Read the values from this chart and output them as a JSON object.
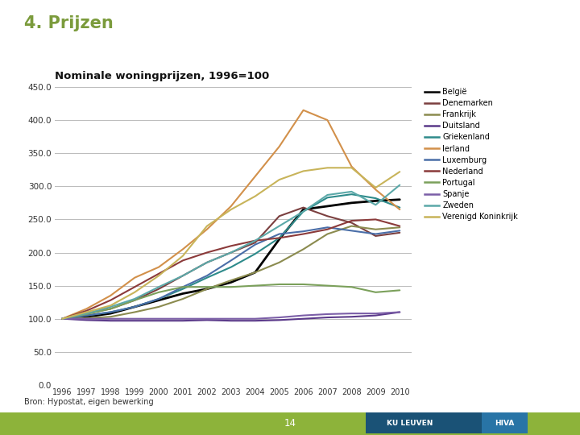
{
  "title": "4. Prijzen",
  "subtitle": "Nominale woningprijzen, 1996=100",
  "source": "Bron: Hypostat, eigen bewerking",
  "years": [
    1996,
    1997,
    1998,
    1999,
    2000,
    2001,
    2002,
    2003,
    2004,
    2005,
    2006,
    2007,
    2008,
    2009,
    2010
  ],
  "ylim": [
    0,
    450
  ],
  "yticks": [
    0.0,
    50.0,
    100.0,
    150.0,
    200.0,
    250.0,
    300.0,
    350.0,
    400.0,
    450.0
  ],
  "series": [
    {
      "name": "België",
      "color": "#000000",
      "linewidth": 2.0,
      "values": [
        100,
        103,
        108,
        118,
        128,
        138,
        145,
        155,
        170,
        220,
        265,
        270,
        275,
        278,
        280
      ]
    },
    {
      "name": "Denemarken",
      "color": "#7B3F3F",
      "linewidth": 1.5,
      "values": [
        100,
        108,
        115,
        128,
        145,
        165,
        185,
        200,
        215,
        255,
        268,
        255,
        245,
        225,
        230
      ]
    },
    {
      "name": "Frankrijk",
      "color": "#8B8B4F",
      "linewidth": 1.5,
      "values": [
        100,
        101,
        103,
        110,
        118,
        130,
        145,
        158,
        170,
        185,
        205,
        228,
        240,
        235,
        238
      ]
    },
    {
      "name": "Duitsland",
      "color": "#5B3A8A",
      "linewidth": 1.5,
      "values": [
        100,
        98,
        97,
        97,
        97,
        97,
        98,
        97,
        97,
        98,
        100,
        102,
        103,
        105,
        110
      ]
    },
    {
      "name": "Griekenland",
      "color": "#2E8B8B",
      "linewidth": 1.5,
      "values": [
        100,
        105,
        110,
        118,
        130,
        145,
        162,
        178,
        198,
        222,
        262,
        283,
        288,
        282,
        268
      ]
    },
    {
      "name": "Ierland",
      "color": "#D2904A",
      "linewidth": 1.5,
      "values": [
        100,
        115,
        135,
        162,
        178,
        205,
        235,
        270,
        315,
        360,
        415,
        400,
        330,
        295,
        265
      ]
    },
    {
      "name": "Luxemburg",
      "color": "#4A6EA8",
      "linewidth": 1.5,
      "values": [
        100,
        105,
        110,
        118,
        130,
        148,
        165,
        188,
        212,
        228,
        232,
        238,
        233,
        228,
        233
      ]
    },
    {
      "name": "Nederland",
      "color": "#8B3A3A",
      "linewidth": 1.5,
      "values": [
        100,
        112,
        128,
        148,
        168,
        188,
        200,
        210,
        218,
        222,
        228,
        235,
        248,
        250,
        240
      ]
    },
    {
      "name": "Portugal",
      "color": "#7BA05B",
      "linewidth": 1.5,
      "values": [
        100,
        107,
        115,
        128,
        140,
        148,
        148,
        148,
        150,
        152,
        152,
        150,
        148,
        140,
        143
      ]
    },
    {
      "name": "Spanje",
      "color": "#7B5EA7",
      "linewidth": 1.5,
      "values": [
        100,
        100,
        100,
        100,
        100,
        100,
        100,
        100,
        100,
        102,
        105,
        107,
        108,
        108,
        110
      ]
    },
    {
      "name": "Zweden",
      "color": "#5BA8A8",
      "linewidth": 1.5,
      "values": [
        100,
        108,
        118,
        130,
        148,
        165,
        185,
        200,
        218,
        240,
        262,
        287,
        292,
        272,
        302
      ]
    },
    {
      "name": "Verenigd Koninkrijk",
      "color": "#C8B45A",
      "linewidth": 1.5,
      "values": [
        100,
        110,
        120,
        140,
        165,
        195,
        240,
        265,
        285,
        310,
        323,
        328,
        328,
        298,
        322
      ]
    }
  ],
  "bg_color": "#ffffff",
  "grid_color": "#BBBBBB",
  "title_color": "#7B9B3C",
  "page_number": "14",
  "green_bar_color": "#8DB33A"
}
